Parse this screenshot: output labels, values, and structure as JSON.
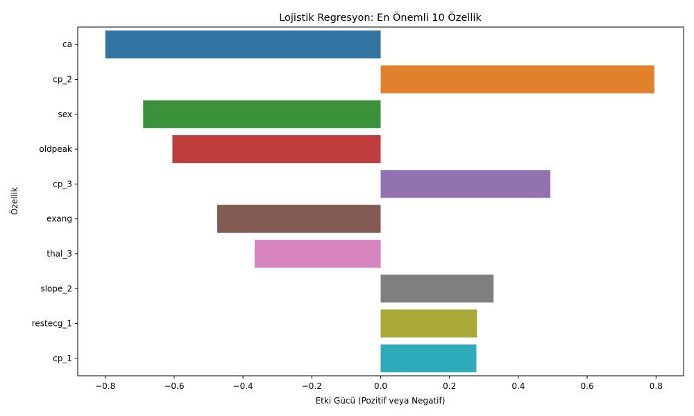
{
  "chart_data": {
    "type": "bar",
    "orientation": "horizontal",
    "title": "Lojistik Regresyon: En Önemli 10 Özellik",
    "xlabel": "Etki Gücü (Pozitif veya Negatif)",
    "ylabel": "Özellik",
    "xlim": [
      -0.88,
      0.88
    ],
    "xticks": [
      -0.8,
      -0.6,
      -0.4,
      -0.2,
      0.0,
      0.2,
      0.4,
      0.6,
      0.8
    ],
    "xtick_labels": [
      "−0.8",
      "−0.6",
      "−0.4",
      "−0.2",
      "0.0",
      "0.2",
      "0.4",
      "0.6",
      "0.8"
    ],
    "grid": false,
    "legend": "none",
    "categories": [
      "ca",
      "cp_2",
      "sex",
      "oldpeak",
      "cp_3",
      "exang",
      "thal_3",
      "slope_2",
      "restecg_1",
      "cp_1"
    ],
    "values": [
      -0.8,
      0.795,
      -0.69,
      -0.605,
      0.493,
      -0.475,
      -0.366,
      0.328,
      0.28,
      0.278
    ],
    "colors": [
      "#3274a1",
      "#e1812c",
      "#3a923a",
      "#c03d3e",
      "#9372b2",
      "#845b53",
      "#d684bd",
      "#7f7f7f",
      "#a9aa35",
      "#2eabb8"
    ]
  }
}
